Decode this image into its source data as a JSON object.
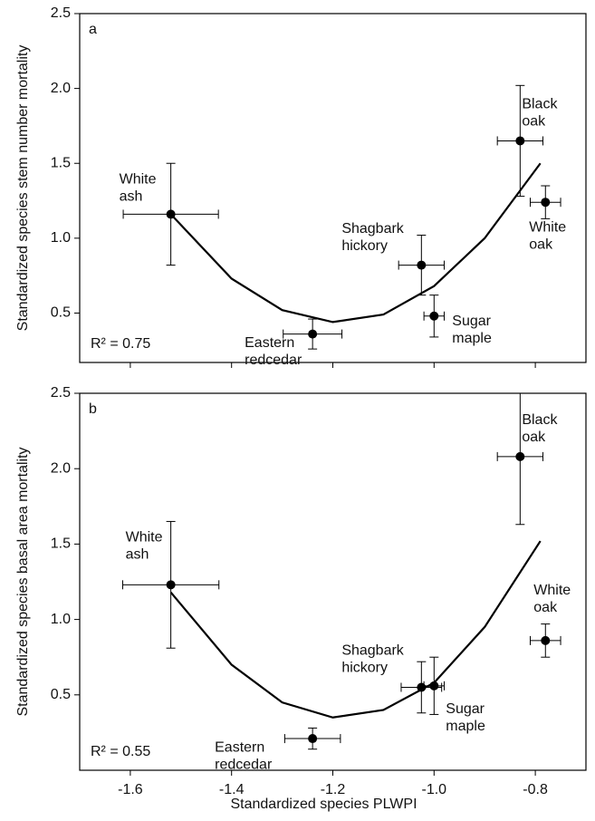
{
  "chart_data": [
    {
      "type": "scatter",
      "panel_label": "a",
      "ylabel": "Standardized species stem number mortality",
      "annotation": "R² = 0.75",
      "xlim": [
        -1.7,
        -0.7
      ],
      "xticks": [
        -1.6,
        -1.4,
        -1.2,
        {
          "value": -1.0,
          "label": "-1.0"
        },
        -0.8
      ],
      "ylim": [
        0.17,
        2.5
      ],
      "yticks": [
        0.5,
        {
          "value": 1.0,
          "label": "1.0"
        },
        1.5,
        {
          "value": 2.0,
          "label": "2.0"
        },
        2.5
      ],
      "series": [
        {
          "color": "#000000",
          "labels": [
            [
              "White",
              "ash"
            ],
            [
              "Eastern",
              "redcedar"
            ],
            [
              "Shagbark",
              "hickory"
            ],
            [
              "Sugar",
              "maple"
            ],
            [
              "Black",
              "oak"
            ],
            [
              "White",
              "oak"
            ]
          ],
          "x": [
            -1.52,
            -1.24,
            -1.025,
            -1.0,
            -0.83,
            -0.78
          ],
          "values": [
            1.16,
            0.36,
            0.82,
            0.48,
            1.65,
            1.24
          ],
          "xerr": [
            0.094,
            0.058,
            0.045,
            0.02,
            0.045,
            0.03
          ],
          "yerr": [
            0.34,
            0.1,
            0.2,
            0.14,
            0.37,
            0.11
          ]
        }
      ],
      "fit": {
        "color": "#000000",
        "x": [
          -1.52,
          -1.4,
          -1.3,
          -1.2,
          -1.1,
          -1.0,
          -0.9,
          -0.79
        ],
        "values": [
          1.16,
          0.73,
          0.52,
          0.44,
          0.49,
          0.68,
          1.0,
          1.5
        ]
      }
    },
    {
      "type": "scatter",
      "panel_label": "b",
      "ylabel": "Standardized species basal area mortality",
      "xlabel": "Standardized species PLWPI",
      "annotation": "R² = 0.55",
      "xlim": [
        -1.7,
        -0.7
      ],
      "xticks": [
        -1.6,
        -1.4,
        -1.2,
        {
          "value": -1.0,
          "label": "-1.0"
        },
        -0.8
      ],
      "ylim": [
        0,
        2.5
      ],
      "yticks": [
        0.5,
        {
          "value": 1.0,
          "label": "1.0"
        },
        1.5,
        {
          "value": 2.0,
          "label": "2.0"
        },
        2.5
      ],
      "series": [
        {
          "color": "#000000",
          "labels": [
            [
              "White",
              "ash"
            ],
            [
              "Eastern",
              "redcedar"
            ],
            [
              "Shagbark",
              "hickory"
            ],
            [
              "Sugar",
              "maple"
            ],
            [
              "Black",
              "oak"
            ],
            [
              "White",
              "oak"
            ]
          ],
          "x": [
            -1.52,
            -1.24,
            -1.025,
            -1.0,
            -0.83,
            -0.78
          ],
          "values": [
            1.23,
            0.21,
            0.55,
            0.56,
            2.08,
            0.86
          ],
          "xerr": [
            0.095,
            0.055,
            0.04,
            0.02,
            0.045,
            0.03
          ],
          "yerr": [
            0.42,
            0.07,
            0.17,
            0.19,
            0.45,
            0.11
          ]
        }
      ],
      "fit": {
        "color": "#000000",
        "x": [
          -1.52,
          -1.4,
          -1.3,
          -1.2,
          -1.1,
          -1.0,
          -0.9,
          -0.79
        ],
        "values": [
          1.18,
          0.7,
          0.45,
          0.35,
          0.4,
          0.58,
          0.95,
          1.52
        ]
      }
    }
  ]
}
